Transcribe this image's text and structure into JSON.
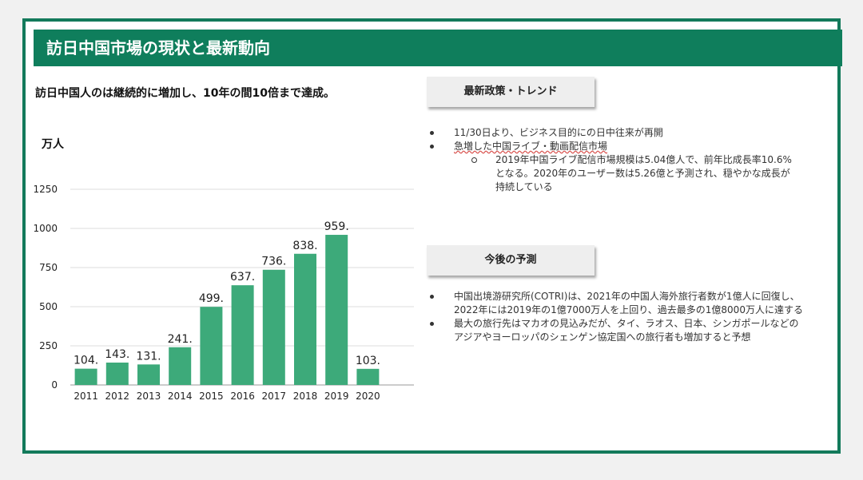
{
  "slide": {
    "title": "訪日中国市場の現状と最新動向",
    "headline": "訪日中国人のは継続的に増加し、10年の間10倍まで達成。",
    "unit_label": "万人"
  },
  "chart_data": {
    "type": "bar",
    "categories": [
      "2011",
      "2012",
      "2013",
      "2014",
      "2015",
      "2016",
      "2017",
      "2018",
      "2019",
      "2020"
    ],
    "values": [
      104,
      143,
      131,
      241,
      499,
      637,
      736,
      838,
      959,
      103
    ],
    "data_labels": [
      "104.",
      "143.",
      "131.",
      "241.",
      "499.",
      "637.",
      "736.",
      "838.",
      "959.",
      "103."
    ],
    "yticks": [
      "0",
      "250",
      "500",
      "750",
      "1000",
      "1250"
    ],
    "ylim": [
      0,
      1250
    ],
    "ylabel": "万人",
    "grid": true,
    "bar_color": "#3daa7a"
  },
  "trend": {
    "header": "最新政策・トレンド",
    "items": [
      "11/30日より、ビジネス目的にの日中往来が再開",
      "急増した中国ライブ・動画配信市場"
    ],
    "sub_item": "2019年中国ライブ配信市場規模は5.04億人で、前年比成長率10.6%となる。2020年のユーザー数は5.26億と予測され、穏やかな成長が持続している"
  },
  "forecast": {
    "header": "今後の予測",
    "items": [
      "中国出境游研究所(COTRI)は、2021年の中国人海外旅行者数が1億人に回復し、2022年には2019年の1億7000万人を上回り、過去最多の1億8000万人に達する",
      "最大の旅行先はマカオの見込みだが、タイ、ラオス、日本、シンガポールなどのアジアやヨーロッパのシェンゲン協定国への旅行者も増加すると予想"
    ]
  },
  "colors": {
    "header_green": "#0f7e5c",
    "border_green": "#137a5b",
    "bar_green": "#3daa7a"
  }
}
